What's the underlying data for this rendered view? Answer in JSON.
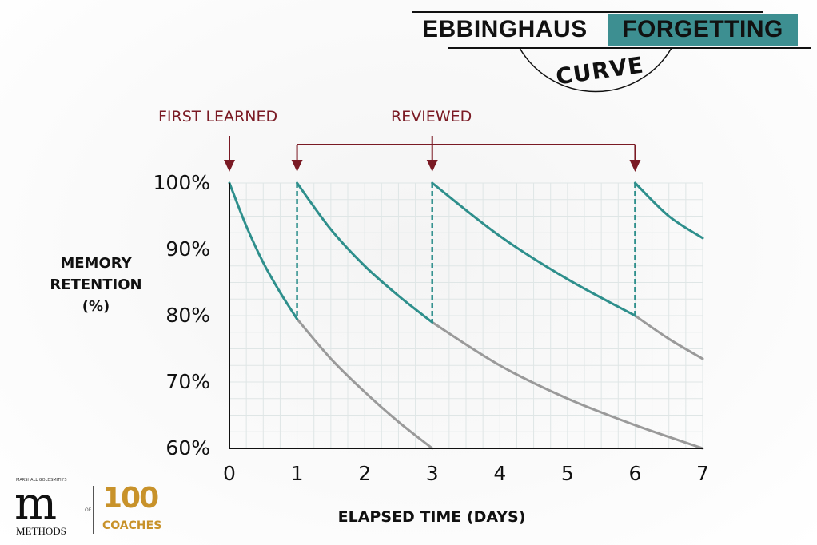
{
  "title": {
    "part1": "EBBINGHAUS",
    "part2": "FORGETTING",
    "part3": "CURVE",
    "accent_color": "#3d8f91"
  },
  "annotations": {
    "first_learned": "FIRST LEARNED",
    "reviewed": "REVIEWED",
    "color": "#7a1a24"
  },
  "logo": {
    "small_text": "MARSHALL GOLDSMITH'S",
    "m": "m",
    "methods": "METHODS",
    "of": "OF",
    "number": "100",
    "coaches": "COACHES"
  },
  "chart_data": {
    "type": "line",
    "title": "EBBINGHAUS FORGETTING CURVE",
    "xlabel": "ELAPSED TIME (DAYS)",
    "ylabel": "MEMORY RETENTION (%)",
    "xlim": [
      0,
      7
    ],
    "ylim": [
      60,
      100
    ],
    "x_ticks": [
      "0",
      "1",
      "2",
      "3",
      "4",
      "5",
      "6",
      "7"
    ],
    "y_ticks": [
      "100%",
      "90%",
      "80%",
      "70%",
      "60%"
    ],
    "y_tick_values": [
      100,
      90,
      80,
      70,
      60
    ],
    "grid": true,
    "review_days": [
      1,
      3,
      6
    ],
    "first_learned_day": 0,
    "colors": {
      "retention": "#2e8f8c",
      "forgetting": "#9a9a9a"
    },
    "series": [
      {
        "kind": "retention",
        "points": [
          [
            0,
            100
          ],
          [
            0.25,
            93.5
          ],
          [
            0.5,
            88
          ],
          [
            0.75,
            83.5
          ],
          [
            1,
            79.5
          ]
        ]
      },
      {
        "kind": "forgetting",
        "points": [
          [
            1,
            79.5
          ],
          [
            1.5,
            73.5
          ],
          [
            2,
            68.5
          ],
          [
            2.5,
            64
          ],
          [
            3,
            60
          ]
        ]
      },
      {
        "kind": "retention",
        "points": [
          [
            1,
            100
          ],
          [
            1.5,
            93
          ],
          [
            2,
            87.5
          ],
          [
            2.5,
            83
          ],
          [
            3,
            79
          ]
        ]
      },
      {
        "kind": "forgetting",
        "points": [
          [
            3,
            79
          ],
          [
            4,
            72.5
          ],
          [
            5,
            67.5
          ],
          [
            6,
            63.5
          ],
          [
            7,
            60
          ]
        ]
      },
      {
        "kind": "retention",
        "points": [
          [
            3,
            100
          ],
          [
            4,
            92
          ],
          [
            5,
            85.5
          ],
          [
            6,
            80
          ]
        ]
      },
      {
        "kind": "forgetting",
        "points": [
          [
            6,
            80
          ],
          [
            6.5,
            76.5
          ],
          [
            7,
            73.5
          ]
        ]
      },
      {
        "kind": "retention",
        "points": [
          [
            6,
            100
          ],
          [
            6.5,
            95
          ],
          [
            7,
            91.7
          ]
        ]
      }
    ]
  }
}
